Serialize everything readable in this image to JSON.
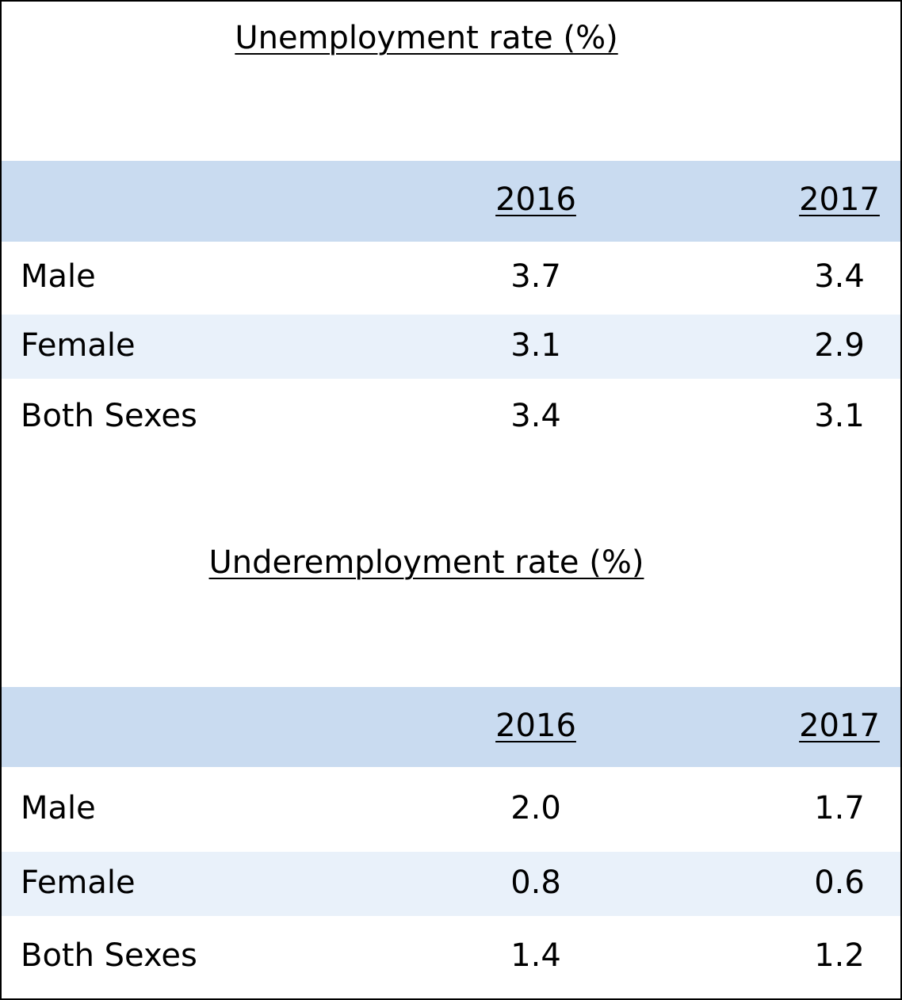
{
  "tables": [
    {
      "title": "Unemployment rate (%)",
      "header": [
        "2016",
        "2017"
      ],
      "rows": [
        [
          "Male",
          "3.7",
          "3.4"
        ],
        [
          "Female",
          "3.1",
          "2.9"
        ],
        [
          "Both Sexes",
          "3.4",
          "3.1"
        ]
      ]
    },
    {
      "title": "Underemployment rate (%)",
      "header": [
        "2016",
        "2017"
      ],
      "rows": [
        [
          "Male",
          "2.0",
          "1.7"
        ],
        [
          "Female",
          "0.8",
          "0.6"
        ],
        [
          "Both Sexes",
          "1.4",
          "1.2"
        ]
      ]
    }
  ]
}
